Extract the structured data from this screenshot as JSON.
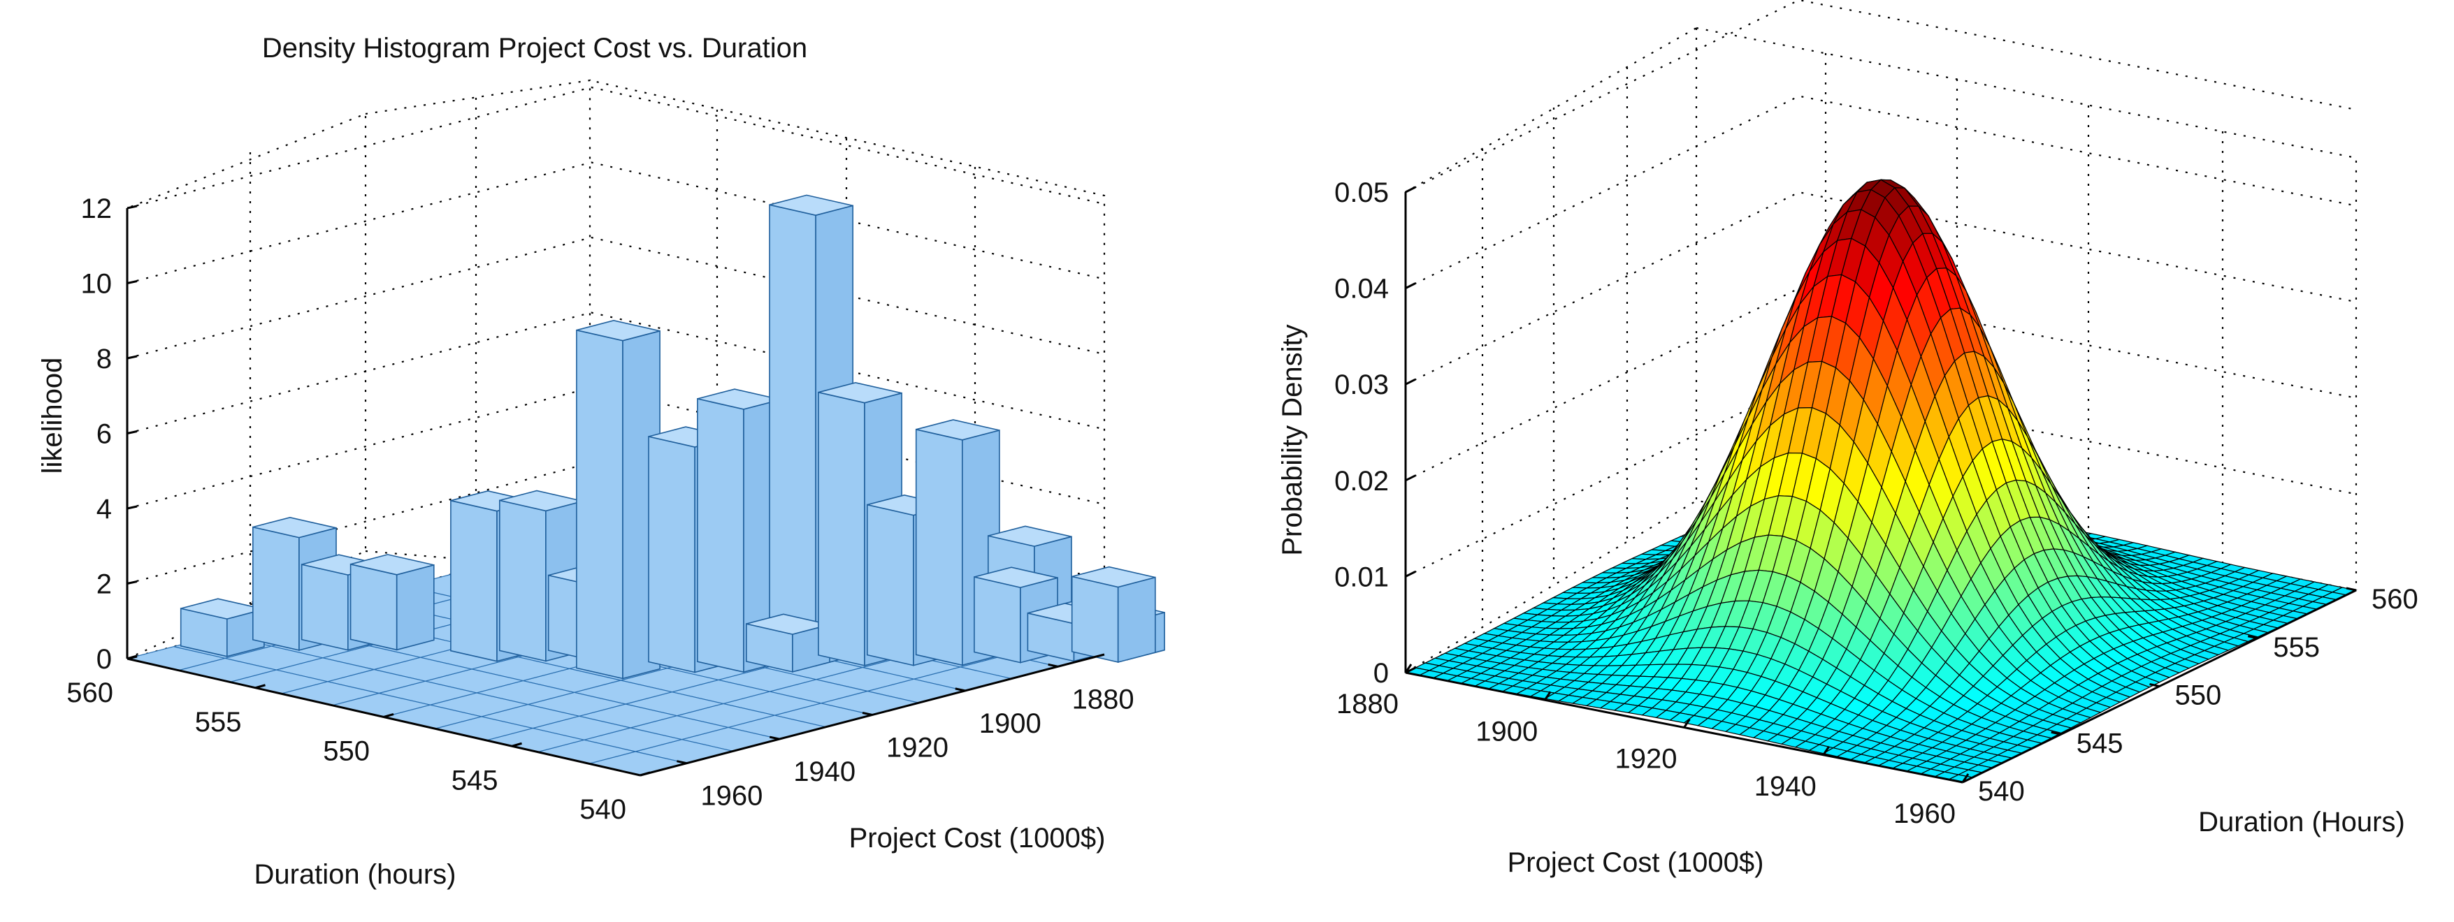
{
  "figure": "Two 3D plots of project cost versus duration",
  "chart_data": [
    {
      "type": "bar3d",
      "title": "Density Histogram Project Cost vs. Duration",
      "xlabel": "Project Cost (1000$)",
      "ylabel": "Duration (hours)",
      "zlabel": "likelihood",
      "x_ticks": [
        "1880",
        "1900",
        "1920",
        "1940",
        "1960"
      ],
      "y_ticks": [
        "540",
        "545",
        "550",
        "555",
        "560"
      ],
      "z_ticks": [
        "0",
        "2",
        "4",
        "6",
        "8",
        "10",
        "12"
      ],
      "xlim": [
        1870,
        1970
      ],
      "ylim": [
        540,
        560
      ],
      "zlim": [
        0,
        12
      ],
      "bar_color": "#9fcdf5",
      "bars": [
        {
          "cost": 1955,
          "duration": 559,
          "value": 1
        },
        {
          "cost": 1945,
          "duration": 558,
          "value": 3
        },
        {
          "cost": 1940,
          "duration": 557,
          "value": 2
        },
        {
          "cost": 1935,
          "duration": 556,
          "value": 2
        },
        {
          "cost": 1930,
          "duration": 553,
          "value": 4
        },
        {
          "cost": 1925,
          "duration": 552,
          "value": 4
        },
        {
          "cost": 1920,
          "duration": 551,
          "value": 2
        },
        {
          "cost": 1915,
          "duration": 550,
          "value": 3
        },
        {
          "cost": 1925,
          "duration": 549,
          "value": 9
        },
        {
          "cost": 1915,
          "duration": 548,
          "value": 6
        },
        {
          "cost": 1910,
          "duration": 547,
          "value": 7
        },
        {
          "cost": 1905,
          "duration": 546,
          "value": 1
        },
        {
          "cost": 1900,
          "duration": 546,
          "value": 12
        },
        {
          "cost": 1895,
          "duration": 545,
          "value": 7
        },
        {
          "cost": 1890,
          "duration": 544,
          "value": 4
        },
        {
          "cost": 1885,
          "duration": 543,
          "value": 6
        },
        {
          "cost": 1880,
          "duration": 543,
          "value": 1
        },
        {
          "cost": 1878,
          "duration": 542,
          "value": 2
        },
        {
          "cost": 1875,
          "duration": 542,
          "value": 3
        },
        {
          "cost": 1872,
          "duration": 541,
          "value": 1
        },
        {
          "cost": 1870,
          "duration": 541,
          "value": 1
        },
        {
          "cost": 1868,
          "duration": 540,
          "value": 2
        },
        {
          "cost": 1866,
          "duration": 540,
          "value": 1
        }
      ]
    },
    {
      "type": "surface",
      "title": "",
      "xlabel": "Project Cost (1000$)",
      "ylabel": "Duration (Hours)",
      "zlabel": "Probability Density",
      "x_ticks": [
        "1880",
        "1900",
        "1920",
        "1940",
        "1960"
      ],
      "y_ticks": [
        "540",
        "545",
        "550",
        "555",
        "560"
      ],
      "z_ticks": [
        "0",
        "0.01",
        "0.02",
        "0.03",
        "0.04",
        "0.05"
      ],
      "xlim": [
        1880,
        1960
      ],
      "ylim": [
        540,
        560
      ],
      "zlim": [
        0,
        0.05
      ],
      "peak": {
        "cost": 1920,
        "duration": 550,
        "density": 0.047
      },
      "spread": {
        "cost_sd": 13,
        "duration_sd": 3.3
      },
      "colormap": "jet"
    }
  ]
}
